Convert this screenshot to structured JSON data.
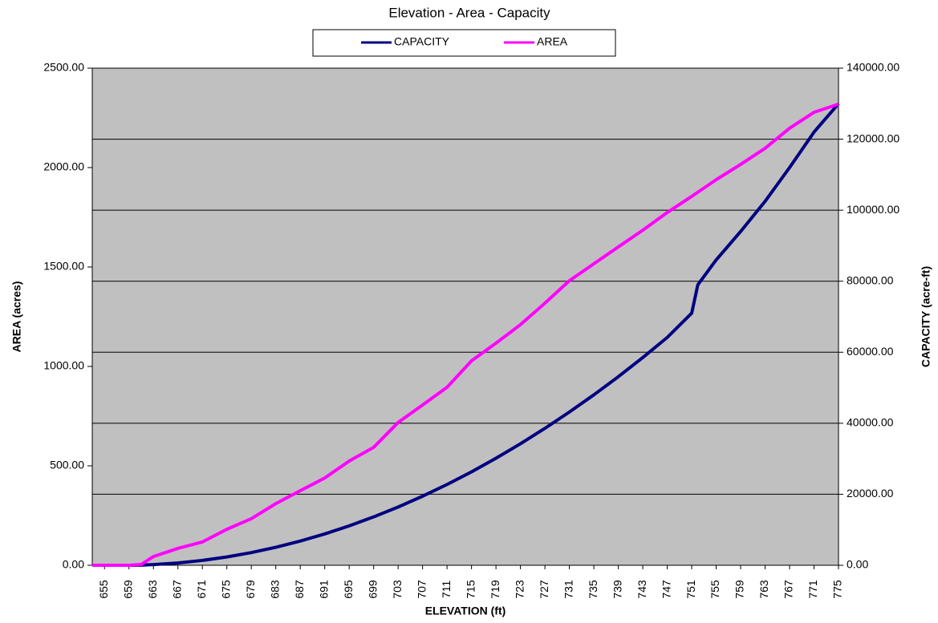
{
  "chart_data": {
    "type": "line",
    "title": "Elevation - Area - Capacity",
    "x_label": "ELEVATION (ft)",
    "y_label": "AREA (acres)",
    "y2_label": "CAPACITY (acre-ft)",
    "x": [
      653,
      655,
      659,
      661,
      663,
      667,
      671,
      675,
      679,
      683,
      687,
      691,
      695,
      699,
      703,
      707,
      711,
      715,
      719,
      723,
      727,
      731,
      735,
      739,
      743,
      747,
      751,
      752,
      755,
      759,
      763,
      767,
      771,
      775
    ],
    "xlim": [
      653,
      775
    ],
    "xticks": [
      655,
      659,
      663,
      667,
      671,
      675,
      679,
      683,
      687,
      691,
      695,
      699,
      703,
      707,
      711,
      715,
      719,
      723,
      727,
      731,
      735,
      739,
      743,
      747,
      751,
      755,
      759,
      763,
      767,
      771,
      775
    ],
    "ylim": [
      0,
      2500
    ],
    "yticks": [
      {
        "value": 0,
        "label": "0.00"
      },
      {
        "value": 500,
        "label": "500.00"
      },
      {
        "value": 1000,
        "label": "1000.00"
      },
      {
        "value": 1500,
        "label": "1500.00"
      },
      {
        "value": 2000,
        "label": "2000.00"
      },
      {
        "value": 2500,
        "label": "2500.00"
      }
    ],
    "y2lim": [
      0,
      140000
    ],
    "y2ticks": [
      {
        "value": 0,
        "label": "0.00"
      },
      {
        "value": 20000,
        "label": "20000.00"
      },
      {
        "value": 40000,
        "label": "40000.00"
      },
      {
        "value": 60000,
        "label": "60000.00"
      },
      {
        "value": 80000,
        "label": "80000.00"
      },
      {
        "value": 100000,
        "label": "100000.00"
      },
      {
        "value": 120000,
        "label": "120000.00"
      },
      {
        "value": 140000,
        "label": "140000.00"
      }
    ],
    "grid": true,
    "legend": "top",
    "series": [
      {
        "name": "CAPACITY",
        "color": "#000080",
        "axis": "y2",
        "values": [
          0,
          0,
          0,
          30,
          200,
          660,
          1370,
          2340,
          3570,
          5060,
          6810,
          8820,
          11090,
          13620,
          16400,
          19450,
          22750,
          26300,
          30140,
          34220,
          38560,
          43160,
          48000,
          53100,
          58500,
          64160,
          71000,
          79000,
          86000,
          94000,
          102500,
          112000,
          122000,
          130000
        ]
      },
      {
        "name": "AREA",
        "color": "#ff00ff",
        "values": [
          0,
          0,
          0,
          4,
          44,
          85,
          117,
          181,
          234,
          310,
          375,
          439,
          524,
          593,
          718,
          806,
          895,
          1028,
          1117,
          1210,
          1318,
          1431,
          1516,
          1601,
          1685,
          1774,
          1855,
          1876,
          1939,
          2016,
          2097,
          2198,
          2278,
          2319
        ]
      }
    ]
  }
}
